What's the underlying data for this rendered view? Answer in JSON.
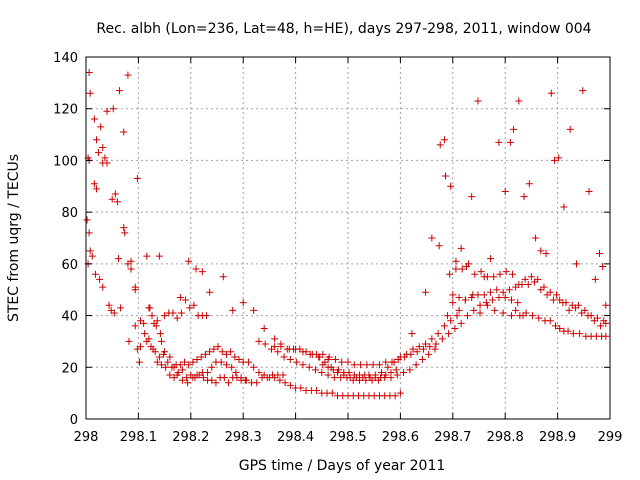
{
  "chart_data": {
    "type": "scatter",
    "title": "Rec. albh (Lon=236, Lat=48, h=HE), days 297-298, 2011, window 004",
    "xlabel": "GPS time / Days of year 2011",
    "ylabel": "STEC from uqrg / TECUs",
    "xlim": [
      298,
      299
    ],
    "ylim": [
      0,
      140
    ],
    "xticks": [
      "298",
      "298.1",
      "298.2",
      "298.3",
      "298.4",
      "298.5",
      "298.6",
      "298.7",
      "298.8",
      "298.9",
      "299"
    ],
    "yticks": [
      "0",
      "20",
      "40",
      "60",
      "80",
      "100",
      "120",
      "140"
    ],
    "grid": true,
    "marker": "plus",
    "color": "#cc0000",
    "series": [
      {
        "x": [
          298.006,
          298.008,
          298.004,
          298.006,
          298.008,
          298.016,
          298.02,
          298.028,
          298.032,
          298.04,
          298.05,
          298.06,
          298.072,
          298.08,
          298.086,
          298.094,
          298.098,
          298.104,
          298.002,
          298.006,
          298.016,
          298.02,
          298.024,
          298.032,
          298.036,
          298.04,
          298.052,
          298.056,
          298.064,
          298.072,
          298.08,
          298.086,
          298.094,
          298.102,
          298.004,
          298.012,
          298.018,
          298.026,
          298.032,
          298.044,
          298.048,
          298.054,
          298.062,
          298.066,
          298.074,
          298.082,
          298.094,
          298.098,
          298.104,
          298.11,
          298.116,
          298.122,
          298.13,
          298.136,
          298.142,
          298.15,
          298.158,
          298.166,
          298.174,
          298.182,
          298.19,
          298.198,
          298.206,
          298.214,
          298.222,
          298.23,
          298.116,
          298.124,
          298.132,
          298.14,
          298.148,
          298.156,
          298.164,
          298.172,
          298.18,
          298.188,
          298.196,
          298.204,
          298.212,
          298.22,
          298.228,
          298.236,
          298.244,
          298.252,
          298.26,
          298.268,
          298.276,
          298.284,
          298.292,
          298.3,
          298.112,
          298.12,
          298.128,
          298.136,
          298.144,
          298.152,
          298.16,
          298.168,
          298.176,
          298.184,
          298.192,
          298.2,
          298.208,
          298.216,
          298.224,
          298.232,
          298.24,
          298.248,
          298.256,
          298.264,
          298.272,
          298.28,
          298.288,
          298.296,
          298.304,
          298.12,
          298.126,
          298.134,
          298.144,
          298.15,
          298.16,
          298.168,
          298.174,
          298.184,
          298.194,
          298.204,
          298.212,
          298.222,
          298.232,
          298.24,
          298.248,
          298.258,
          298.268,
          298.278,
          298.286,
          298.296,
          298.306,
          298.316,
          298.326,
          298.336,
          298.346,
          298.356,
          298.366,
          298.376,
          298.14,
          298.18,
          298.196,
          298.21,
          298.222,
          298.236,
          298.262,
          298.28,
          298.3,
          298.32,
          298.34,
          298.36,
          298.372,
          298.388,
          298.4,
          298.414,
          298.428,
          298.446,
          298.462,
          298.31,
          298.32,
          298.33,
          298.34,
          298.35,
          298.36,
          298.37,
          298.38,
          298.39,
          298.4,
          298.41,
          298.42,
          298.43,
          298.44,
          298.45,
          298.46,
          298.47,
          298.48,
          298.49,
          298.5,
          298.51,
          298.52,
          298.53,
          298.54,
          298.55,
          298.56,
          298.57,
          298.58,
          298.59,
          298.6,
          298.33,
          298.342,
          298.354,
          298.366,
          298.378,
          298.39,
          298.402,
          298.414,
          298.426,
          298.438,
          298.45,
          298.462,
          298.474,
          298.486,
          298.498,
          298.51,
          298.522,
          298.534,
          298.546,
          298.558,
          298.57,
          298.582,
          298.594,
          298.606,
          298.618,
          298.63,
          298.642,
          298.654,
          298.666,
          298.36,
          298.372,
          298.384,
          298.396,
          298.408,
          298.42,
          298.432,
          298.444,
          298.456,
          298.468,
          298.48,
          298.492,
          298.504,
          298.516,
          298.528,
          298.54,
          298.552,
          298.564,
          298.576,
          298.588,
          298.6,
          298.612,
          298.624,
          298.636,
          298.648,
          298.66,
          298.672,
          298.684,
          298.696,
          298.708,
          298.44,
          298.452,
          298.464,
          298.476,
          298.488,
          298.5,
          298.512,
          298.524,
          298.536,
          298.548,
          298.56,
          298.572,
          298.584,
          298.596,
          298.608,
          298.62,
          298.632,
          298.644,
          298.656,
          298.668,
          298.68,
          298.692,
          298.704,
          298.716,
          298.728,
          298.74,
          298.752,
          298.764,
          298.776,
          298.788,
          298.8,
          298.812,
          298.824,
          298.452,
          298.462,
          298.472,
          298.482,
          298.492,
          298.502,
          298.512,
          298.522,
          298.532,
          298.542,
          298.552,
          298.562,
          298.572,
          298.582,
          298.592,
          298.622,
          298.648,
          298.66,
          298.674,
          298.676,
          298.684,
          298.686,
          298.696,
          298.706,
          298.716,
          298.726,
          298.736,
          298.748,
          298.76,
          298.772,
          298.788,
          298.8,
          298.81,
          298.816,
          298.826,
          298.836,
          298.846,
          298.858,
          298.868,
          298.878,
          298.888,
          298.894,
          298.902,
          298.912,
          298.924,
          298.936,
          298.948,
          298.96,
          298.972,
          298.98,
          298.986,
          298.992,
          298.694,
          298.706,
          298.718,
          298.73,
          298.742,
          298.754,
          298.766,
          298.778,
          298.79,
          298.802,
          298.814,
          298.826,
          298.838,
          298.85,
          298.862,
          298.874,
          298.886,
          298.898,
          298.91,
          298.922,
          298.934,
          298.946,
          298.958,
          298.97,
          298.982,
          298.992,
          298.7,
          298.712,
          298.724,
          298.736,
          298.748,
          298.76,
          298.772,
          298.784,
          298.796,
          298.808,
          298.82,
          298.832,
          298.844,
          298.856,
          298.868,
          298.88,
          298.892,
          298.904,
          298.916,
          298.928,
          298.94,
          298.952,
          298.964,
          298.976,
          298.988,
          298.69,
          298.7,
          298.712,
          298.724,
          298.738,
          298.752,
          298.766,
          298.78,
          298.796,
          298.812,
          298.82,
          298.828,
          298.834,
          298.84,
          298.852,
          298.864,
          298.876,
          298.886,
          298.896,
          298.904,
          298.912,
          298.92,
          298.93,
          298.942,
          298.954,
          298.964,
          298.974,
          298.984,
          298.992
        ],
        "y": [
          134,
          126,
          101,
          100,
          65,
          116,
          108,
          113,
          99,
          119,
          85,
          84,
          111,
          133,
          61,
          51,
          93,
          28,
          77,
          72,
          91,
          89,
          103,
          105,
          101,
          99,
          120,
          87,
          127,
          74,
          60,
          58,
          50,
          22,
          60,
          63,
          56,
          54,
          51,
          44,
          42,
          41,
          62,
          43,
          72,
          30,
          36,
          27,
          38,
          37,
          63,
          43,
          37,
          38,
          33,
          40,
          41,
          41,
          39,
          41,
          46,
          43,
          44,
          40,
          40,
          40,
          30,
          28,
          26,
          24,
          25,
          22,
          20,
          21,
          21,
          22,
          21,
          22,
          23,
          24,
          25,
          26,
          27,
          28,
          26,
          25,
          26,
          24,
          23,
          22,
          33,
          31,
          27,
          22,
          21,
          20,
          17,
          16,
          18,
          19,
          16,
          17,
          16,
          17,
          16,
          15,
          15,
          14,
          16,
          16,
          14,
          16,
          16,
          15,
          15,
          43,
          40,
          36,
          30,
          26,
          24,
          20,
          17,
          15,
          14,
          16,
          17,
          18,
          18,
          20,
          22,
          22,
          21,
          20,
          18,
          16,
          15,
          14,
          14,
          16,
          16,
          17,
          17,
          17,
          63,
          47,
          61,
          58,
          57,
          49,
          55,
          42,
          45,
          42,
          35,
          31,
          29,
          27,
          27,
          26,
          25,
          24,
          23,
          22,
          20,
          18,
          17,
          16,
          16,
          15,
          14,
          13,
          12,
          12,
          11,
          11,
          11,
          10,
          10,
          10,
          9,
          9,
          9,
          9,
          9,
          9,
          9,
          9,
          9,
          9,
          9,
          9,
          10,
          30,
          29,
          27,
          26,
          24,
          23,
          22,
          21,
          20,
          19,
          18,
          17,
          16,
          16,
          16,
          15,
          15,
          15,
          15,
          15,
          16,
          16,
          17,
          18,
          19,
          21,
          23,
          25,
          27,
          28,
          28,
          27,
          27,
          27,
          26,
          25,
          24,
          22,
          20,
          18,
          17,
          16,
          16,
          16,
          17,
          17,
          18,
          20,
          22,
          24,
          25,
          27,
          28,
          29,
          31,
          33,
          36,
          38,
          40,
          25,
          25,
          24,
          23,
          22,
          22,
          21,
          21,
          21,
          21,
          21,
          22,
          22,
          23,
          24,
          25,
          26,
          27,
          28,
          29,
          31,
          33,
          35,
          37,
          40,
          42,
          44,
          45,
          46,
          47,
          47,
          46,
          45,
          21,
          20,
          19,
          19,
          18,
          18,
          17,
          17,
          17,
          16,
          16,
          16,
          17,
          18,
          19,
          33,
          49,
          70,
          67,
          106,
          108,
          94,
          90,
          61,
          66,
          59,
          86,
          123,
          55,
          62,
          107,
          88,
          107,
          112,
          123,
          86,
          91,
          70,
          65,
          64,
          126,
          100,
          101,
          82,
          112,
          60,
          127,
          88,
          54,
          64,
          59,
          44,
          56,
          58,
          58,
          60,
          56,
          57,
          55,
          55,
          56,
          57,
          56,
          52,
          54,
          55,
          54,
          51,
          49,
          48,
          45,
          42,
          43,
          41,
          40,
          38,
          36,
          37,
          48,
          47,
          46,
          47,
          48,
          48,
          49,
          50,
          49,
          50,
          51,
          52,
          52,
          53,
          50,
          48,
          46,
          46,
          45,
          44,
          44,
          42,
          40,
          39,
          38,
          40,
          45,
          42,
          46,
          48,
          41,
          44,
          42,
          41,
          40,
          42,
          40,
          40,
          41,
          40,
          39,
          38,
          38,
          36,
          35,
          34,
          34,
          33,
          33,
          32,
          32,
          32,
          32,
          32
        ]
      }
    ]
  }
}
